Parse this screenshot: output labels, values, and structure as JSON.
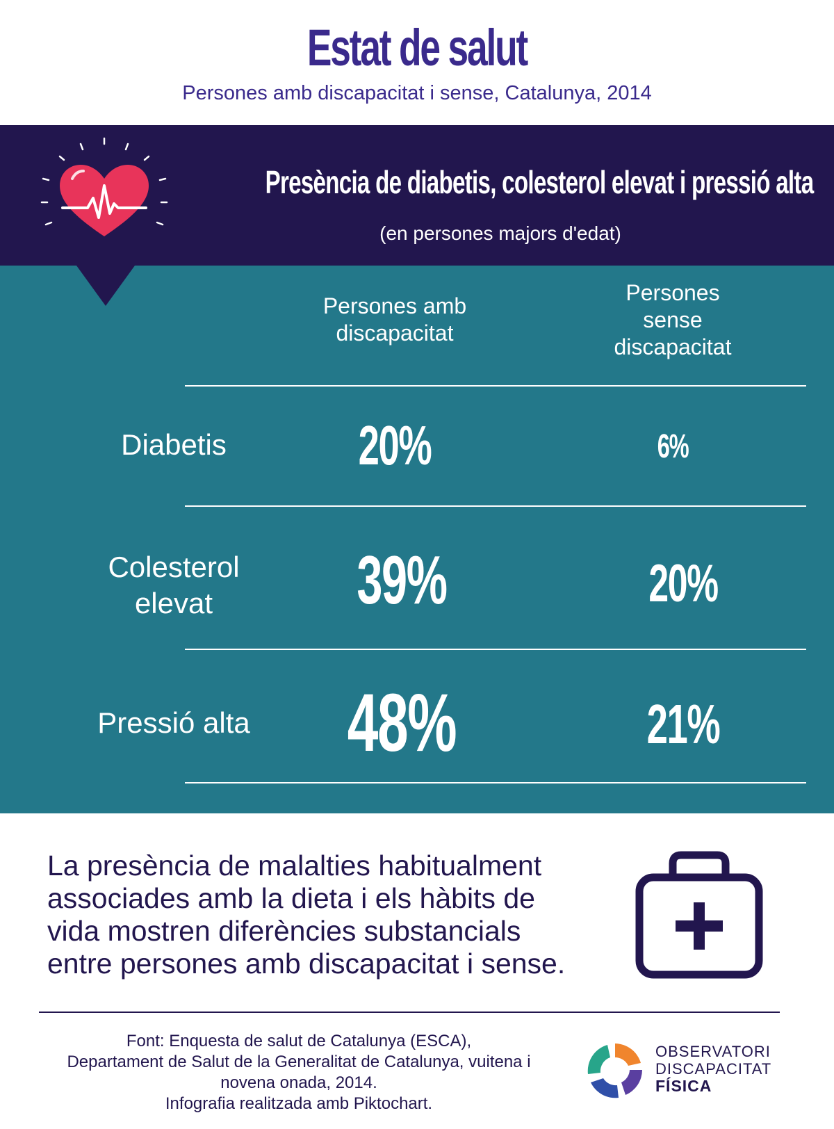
{
  "header": {
    "title": "Estat de salut",
    "subtitle": "Persones amb discapacitat i sense, Catalunya, 2014"
  },
  "section": {
    "title": "Presència de diabetis, colesterol elevat i pressió alta",
    "subtitle": "(en persones majors d'edat)",
    "icon": "heart-pulse-icon"
  },
  "table": {
    "columns": [
      {
        "lines": [
          "Persones amb",
          "discapacitat"
        ]
      },
      {
        "lines": [
          "Persones",
          "sense",
          "discapacitat"
        ]
      }
    ],
    "rows": [
      {
        "label_lines": [
          "Diabetis"
        ],
        "with": "20%",
        "without": "6%"
      },
      {
        "label_lines": [
          "Colesterol",
          "elevat"
        ],
        "with": "39%",
        "without": "20%"
      },
      {
        "label_lines": [
          "Pressió alta"
        ],
        "with": "48%",
        "without": "21%"
      }
    ]
  },
  "note": {
    "text": "La presència de malalties habitualment associades amb la dieta i els hàbits de vida mostren diferències substancials entre persones amb discapacitat i sense.",
    "icon": "first-aid-kit-icon"
  },
  "footer": {
    "source_lines": [
      "Font: Enquesta de salut de Catalunya (ESCA),",
      "Departament de Salut de la Generalitat de Catalunya, vuitena i",
      "novena onada, 2014.",
      "Infografia realitzada amb Piktochart."
    ],
    "logo_lines": [
      "OBSERVATORI",
      "DISCAPACITAT",
      "FÍSICA"
    ]
  },
  "colors": {
    "primary_purple": "#3a2a8c",
    "dark_navy": "#22164e",
    "teal": "#23788a",
    "heart_red": "#e8345a"
  }
}
